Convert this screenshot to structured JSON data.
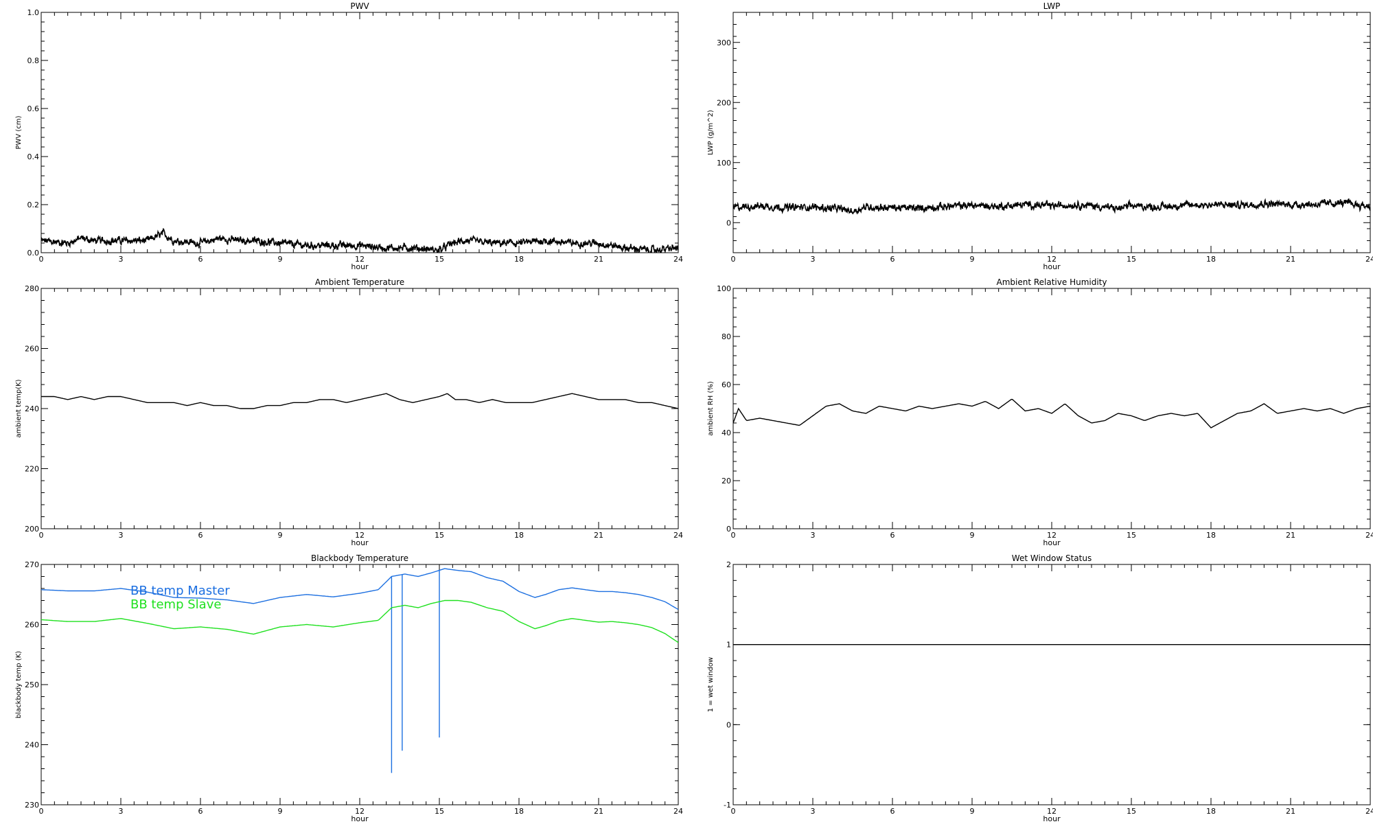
{
  "chart_data": [
    {
      "type": "line",
      "title": "PWV",
      "xlabel": "hour",
      "ylabel": "PWV (cm)",
      "xlim": [
        0,
        24
      ],
      "ylim": [
        0,
        1.0
      ],
      "xticks": [
        0,
        3,
        6,
        9,
        12,
        15,
        18,
        21,
        24
      ],
      "xtick_labels": [
        "0",
        "3",
        "6",
        "9",
        "12",
        "15",
        "18",
        "21",
        "24"
      ],
      "yticks": [
        0,
        0.2,
        0.4,
        0.6,
        0.8,
        1.0
      ],
      "ytick_labels": [
        "0.0",
        "0.2",
        "0.4",
        "0.6",
        "0.8",
        "1.0"
      ],
      "grid": false,
      "series": [
        {
          "color": "#000000",
          "style": "noisy",
          "x": [
            0,
            1,
            1.5,
            2,
            3,
            4,
            4.6,
            5,
            6,
            6.7,
            7.5,
            8,
            9,
            10,
            11,
            12,
            13,
            13.5,
            14,
            15,
            15.5,
            16,
            17,
            18,
            19,
            20,
            21,
            22,
            23,
            24
          ],
          "values": [
            0.05,
            0.04,
            0.06,
            0.05,
            0.05,
            0.05,
            0.08,
            0.05,
            0.04,
            0.06,
            0.05,
            0.05,
            0.04,
            0.03,
            0.03,
            0.03,
            0.02,
            0.02,
            0.02,
            0.01,
            0.04,
            0.05,
            0.04,
            0.04,
            0.05,
            0.04,
            0.04,
            0.02,
            0.01,
            0.02
          ]
        }
      ]
    },
    {
      "type": "line",
      "title": "LWP",
      "xlabel": "hour",
      "ylabel": "LWP (g/m^2)",
      "xlim": [
        0,
        24
      ],
      "ylim": [
        -50,
        350
      ],
      "xticks": [
        0,
        3,
        6,
        9,
        12,
        15,
        18,
        21,
        24
      ],
      "xtick_labels": [
        "0",
        "3",
        "6",
        "9",
        "12",
        "15",
        "18",
        "21",
        "24"
      ],
      "yticks": [
        0,
        100,
        200,
        300
      ],
      "ytick_labels": [
        "0",
        "100",
        "200",
        "300"
      ],
      "grid": false,
      "series": [
        {
          "color": "#000000",
          "style": "noisy",
          "x": [
            0,
            1,
            2,
            3,
            4,
            4.5,
            5,
            6,
            7,
            8,
            9,
            10,
            11,
            12,
            13,
            14,
            14.5,
            15,
            16,
            17,
            18,
            19,
            20,
            21,
            22,
            23,
            24
          ],
          "values": [
            25,
            28,
            25,
            26,
            23,
            19,
            26,
            25,
            24,
            27,
            29,
            27,
            30,
            28,
            30,
            26,
            23,
            28,
            26,
            29,
            30,
            29,
            32,
            30,
            31,
            33,
            27
          ]
        }
      ]
    },
    {
      "type": "line",
      "title": "Ambient Temperature",
      "xlabel": "hour",
      "ylabel": "ambient temp(K)",
      "xlim": [
        0,
        24
      ],
      "ylim": [
        200,
        280
      ],
      "xticks": [
        0,
        3,
        6,
        9,
        12,
        15,
        18,
        21,
        24
      ],
      "xtick_labels": [
        "0",
        "3",
        "6",
        "9",
        "12",
        "15",
        "18",
        "21",
        "24"
      ],
      "yticks": [
        200,
        220,
        240,
        260,
        280
      ],
      "ytick_labels": [
        "200",
        "220",
        "240",
        "260",
        "280"
      ],
      "grid": false,
      "series": [
        {
          "color": "#000000",
          "style": "line",
          "x": [
            0,
            0.5,
            1,
            1.5,
            2,
            2.5,
            3,
            3.5,
            4,
            4.5,
            5,
            5.5,
            6,
            6.5,
            7,
            7.5,
            8,
            8.5,
            9,
            9.5,
            10,
            10.5,
            11,
            11.5,
            12,
            12.5,
            13,
            13.5,
            14,
            14.5,
            15,
            15.3,
            15.6,
            16,
            16.5,
            17,
            17.5,
            18,
            18.5,
            19,
            19.5,
            20,
            20.5,
            21,
            21.5,
            22,
            22.5,
            23,
            23.5,
            24
          ],
          "values": [
            244,
            244,
            243,
            244,
            243,
            244,
            244,
            243,
            242,
            242,
            242,
            241,
            242,
            241,
            241,
            240,
            240,
            241,
            241,
            242,
            242,
            243,
            243,
            242,
            243,
            244,
            245,
            243,
            242,
            243,
            244,
            245,
            243,
            243,
            242,
            243,
            242,
            242,
            242,
            243,
            244,
            245,
            244,
            243,
            243,
            243,
            242,
            242,
            241,
            240
          ]
        }
      ]
    },
    {
      "type": "line",
      "title": "Ambient Relative Humidity",
      "xlabel": "hour",
      "ylabel": "ambient RH (%)",
      "xlim": [
        0,
        24
      ],
      "ylim": [
        0,
        100
      ],
      "xticks": [
        0,
        3,
        6,
        9,
        12,
        15,
        18,
        21,
        24
      ],
      "xtick_labels": [
        "0",
        "3",
        "6",
        "9",
        "12",
        "15",
        "18",
        "21",
        "24"
      ],
      "yticks": [
        0,
        20,
        40,
        60,
        80,
        100
      ],
      "ytick_labels": [
        "0",
        "20",
        "40",
        "60",
        "80",
        "100"
      ],
      "grid": false,
      "series": [
        {
          "color": "#000000",
          "style": "line",
          "x": [
            0,
            0.2,
            0.5,
            1,
            1.5,
            2,
            2.5,
            3,
            3.5,
            4,
            4.5,
            5,
            5.5,
            6,
            6.5,
            7,
            7.5,
            8,
            8.5,
            9,
            9.5,
            10,
            10.5,
            11,
            11.5,
            12,
            12.5,
            13,
            13.5,
            14,
            14.5,
            15,
            15.5,
            16,
            16.5,
            17,
            17.5,
            18,
            18.5,
            19,
            19.5,
            20,
            20.5,
            21,
            21.5,
            22,
            22.5,
            23,
            23.5,
            24
          ],
          "values": [
            44,
            50,
            45,
            46,
            45,
            44,
            43,
            47,
            51,
            52,
            49,
            48,
            51,
            50,
            49,
            51,
            50,
            51,
            52,
            51,
            53,
            50,
            54,
            49,
            50,
            48,
            52,
            47,
            44,
            45,
            48,
            47,
            45,
            47,
            48,
            47,
            48,
            42,
            45,
            48,
            49,
            52,
            48,
            49,
            50,
            49,
            50,
            48,
            50,
            51
          ]
        }
      ]
    },
    {
      "type": "line",
      "title": "Blackbody Temperature",
      "xlabel": "hour",
      "ylabel": "blackbody temp (K)",
      "xlim": [
        0,
        24
      ],
      "ylim": [
        230,
        270
      ],
      "xticks": [
        0,
        3,
        6,
        9,
        12,
        15,
        18,
        21,
        24
      ],
      "xtick_labels": [
        "0",
        "3",
        "6",
        "9",
        "12",
        "15",
        "18",
        "21",
        "24"
      ],
      "yticks": [
        230,
        240,
        250,
        260,
        270
      ],
      "ytick_labels": [
        "230",
        "240",
        "250",
        "260",
        "270"
      ],
      "grid": false,
      "legend": "top-left",
      "series": [
        {
          "name": "BB temp Master",
          "color": "#1c6fe0",
          "style": "line",
          "x": [
            0,
            1,
            2,
            3,
            4,
            5,
            6,
            7,
            8,
            9,
            10,
            11,
            12,
            12.7,
            13.2,
            13.7,
            14.2,
            14.7,
            15.2,
            15.7,
            16.2,
            16.8,
            17.4,
            18,
            18.6,
            19,
            19.5,
            20,
            20.5,
            21,
            21.5,
            22,
            22.5,
            23,
            23.5,
            24
          ],
          "values": [
            265.8,
            265.6,
            265.6,
            266,
            265.4,
            264.5,
            264.4,
            264.1,
            263.5,
            264.5,
            265,
            264.6,
            265.2,
            265.8,
            268,
            268.4,
            268,
            268.6,
            269.3,
            269,
            268.8,
            267.8,
            267.2,
            265.5,
            264.5,
            265,
            265.8,
            266.1,
            265.8,
            265.5,
            265.5,
            265.3,
            265,
            264.5,
            263.8,
            262.5
          ],
          "spikes": [
            {
              "x": 13.2,
              "y": 235.3
            },
            {
              "x": 13.6,
              "y": 239
            },
            {
              "x": 15.0,
              "y": 241.2
            }
          ]
        },
        {
          "name": "BB temp Slave",
          "color": "#1ee01e",
          "style": "line",
          "x": [
            0,
            1,
            2,
            3,
            4,
            5,
            6,
            7,
            8,
            9,
            10,
            11,
            12,
            12.7,
            13.2,
            13.7,
            14.2,
            14.7,
            15.2,
            15.7,
            16.2,
            16.8,
            17.4,
            18,
            18.6,
            19,
            19.5,
            20,
            20.5,
            21,
            21.5,
            22,
            22.5,
            23,
            23.5,
            24
          ],
          "values": [
            260.8,
            260.5,
            260.5,
            261,
            260.2,
            259.3,
            259.6,
            259.2,
            258.4,
            259.6,
            260,
            259.6,
            260.3,
            260.7,
            262.8,
            263.2,
            262.8,
            263.5,
            264,
            264,
            263.7,
            262.8,
            262.2,
            260.5,
            259.3,
            259.8,
            260.6,
            261,
            260.7,
            260.4,
            260.5,
            260.3,
            260,
            259.5,
            258.5,
            257
          ]
        }
      ]
    },
    {
      "type": "line",
      "title": "Wet Window Status",
      "xlabel": "hour",
      "ylabel": "1 = wet window",
      "xlim": [
        0,
        24
      ],
      "ylim": [
        -1,
        2
      ],
      "xticks": [
        0,
        3,
        6,
        9,
        12,
        15,
        18,
        21,
        24
      ],
      "xtick_labels": [
        "0",
        "3",
        "6",
        "9",
        "12",
        "15",
        "18",
        "21",
        "24"
      ],
      "yticks": [
        -1,
        0,
        1,
        2
      ],
      "ytick_labels": [
        "-1",
        "0",
        "1",
        "2"
      ],
      "grid": false,
      "series": [
        {
          "color": "#000000",
          "style": "line",
          "x": [
            0,
            24
          ],
          "values": [
            1,
            1
          ]
        }
      ]
    }
  ]
}
